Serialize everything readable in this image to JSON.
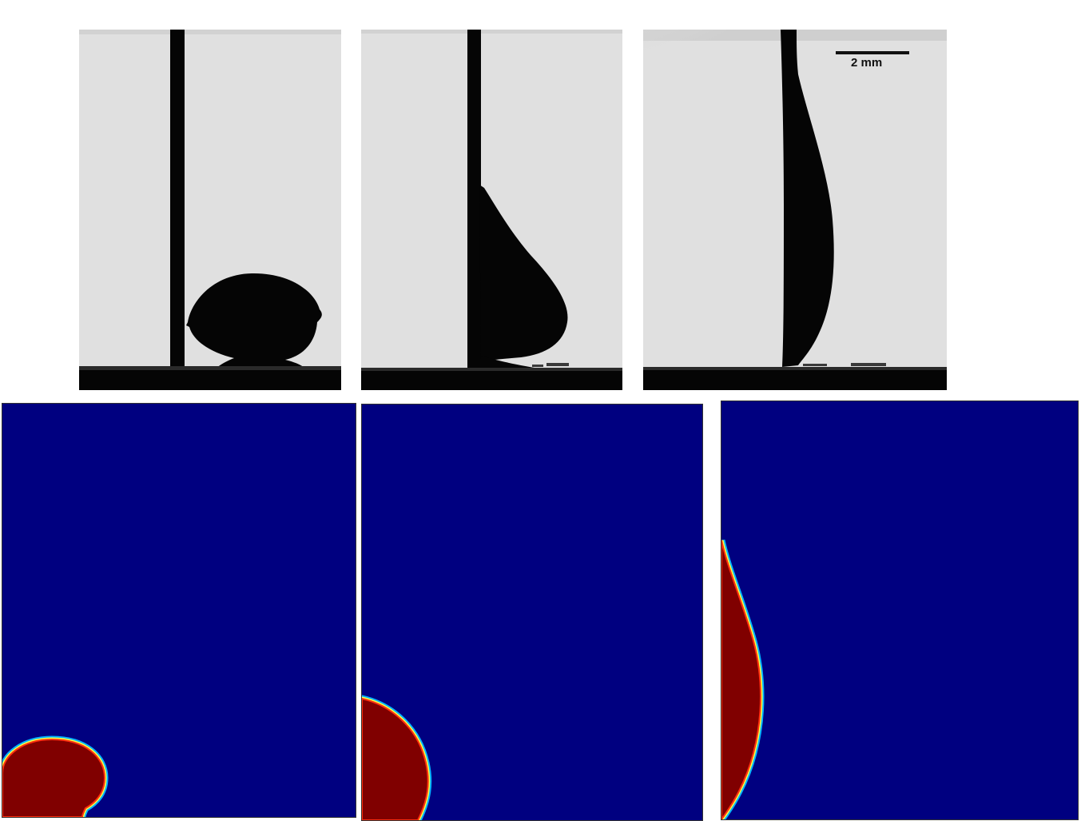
{
  "figure": {
    "scale_bar": {
      "label": "2 mm"
    },
    "colors": {
      "photo_background": "#e0e0e0",
      "photo_silhouette": "#050505",
      "sim_background": "#000080",
      "sim_droplet": "#800000",
      "sim_interface_outer": "#00b4ff",
      "sim_interface_mid": "#ffff40",
      "sim_interface_inner": "#ff3010"
    },
    "rows": [
      {
        "name": "experiment-row",
        "panels": [
          "experiment-panel-1",
          "experiment-panel-2",
          "experiment-panel-3"
        ]
      },
      {
        "name": "simulation-row",
        "panels": [
          "simulation-panel-1",
          "simulation-panel-2",
          "simulation-panel-3"
        ]
      }
    ]
  }
}
